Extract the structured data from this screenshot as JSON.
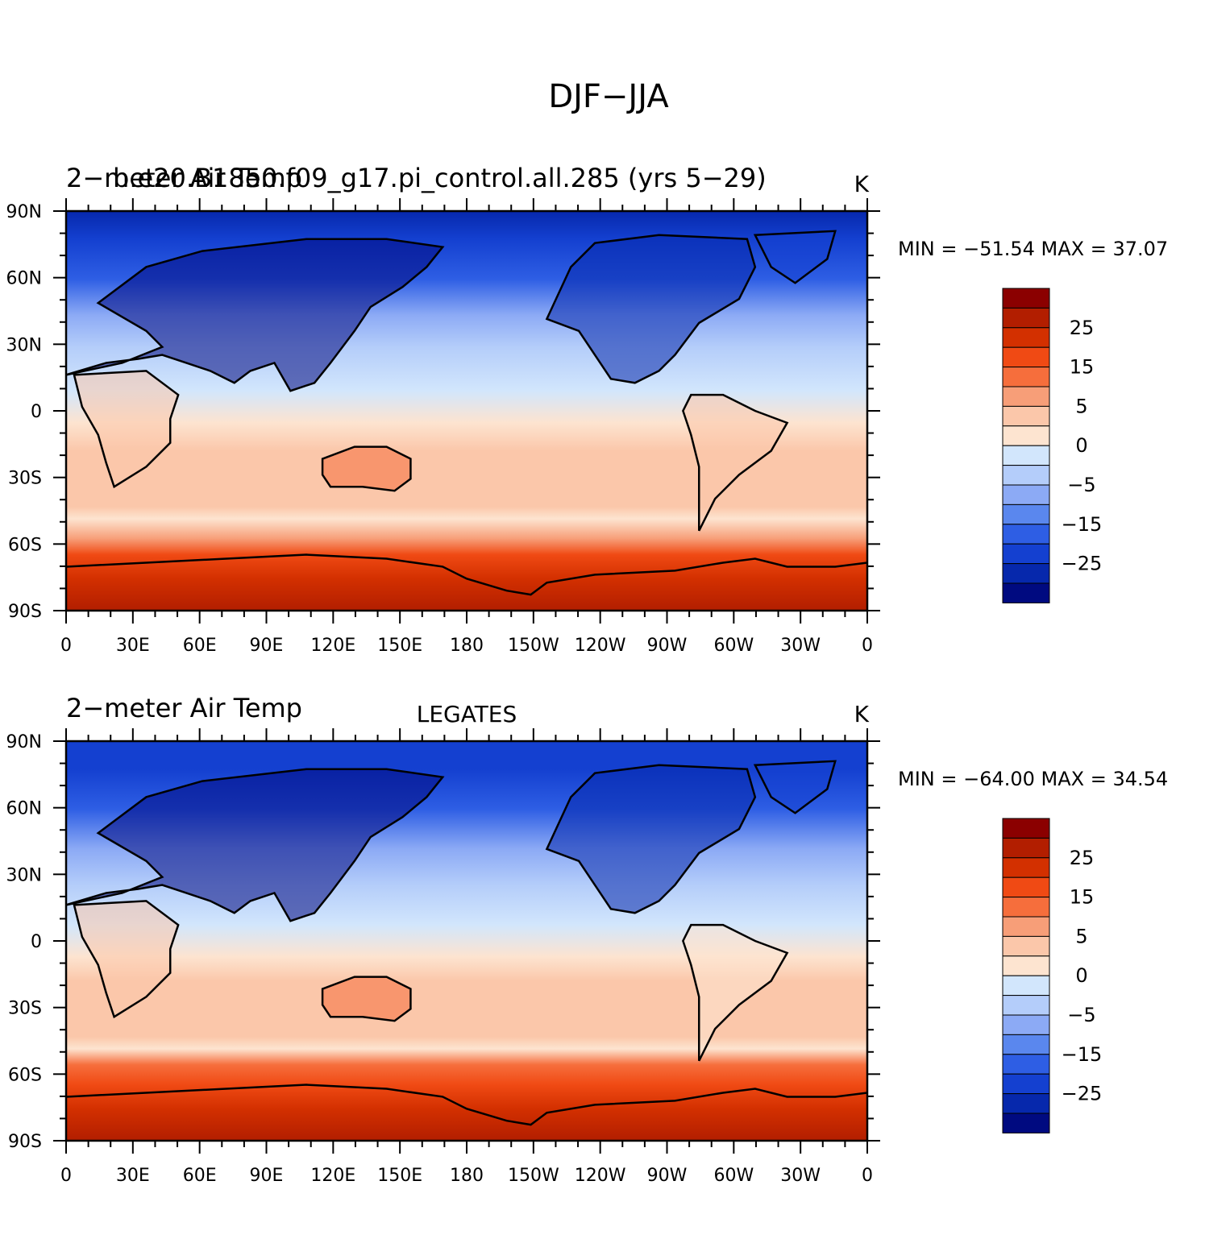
{
  "title": "DJF−JJA",
  "x_ticks": [
    "0",
    "30E",
    "60E",
    "90E",
    "120E",
    "150E",
    "180",
    "150W",
    "120W",
    "90W",
    "60W",
    "30W",
    "0"
  ],
  "y_ticks": [
    "90N",
    "60N",
    "30N",
    "0",
    "30S",
    "60S",
    "90S"
  ],
  "colorbar": {
    "labels": [
      "25",
      "15",
      "5",
      "0",
      "−5",
      "−15",
      "−25"
    ],
    "colors": [
      "#8b0000",
      "#b21e00",
      "#d33000",
      "#f04a14",
      "#f66e3c",
      "#f79e78",
      "#fbc7aa",
      "#fde4d0",
      "#d2e6fc",
      "#b4cdfa",
      "#8caaf5",
      "#5a87ee",
      "#2e5ee4",
      "#1440d0",
      "#0628ac",
      "#000a80"
    ]
  },
  "panels": [
    {
      "left_title": "2−meter Air Temp",
      "center_title": "b.e20.B1850.f09_g17.pi_control.all.285 (yrs 5−29)",
      "units": "K",
      "min_max": "MIN = −51.54  MAX =   37.07"
    },
    {
      "left_title": "2−meter Air Temp",
      "center_title": "LEGATES",
      "units": "K",
      "min_max": "MIN = −64.00  MAX =   34.54"
    }
  ]
}
